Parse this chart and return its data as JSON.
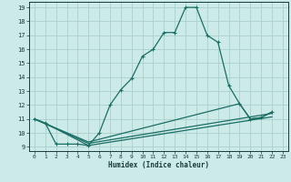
{
  "xlabel": "Humidex (Indice chaleur)",
  "bg_color": "#cceae8",
  "grid_color": "#aacfcd",
  "line_color": "#1a6e64",
  "xlim": [
    -0.5,
    23.5
  ],
  "ylim": [
    8.7,
    19.4
  ],
  "xticks": [
    0,
    1,
    2,
    3,
    4,
    5,
    6,
    7,
    8,
    9,
    10,
    11,
    12,
    13,
    14,
    15,
    16,
    17,
    18,
    19,
    20,
    21,
    22,
    23
  ],
  "yticks": [
    9,
    10,
    11,
    12,
    13,
    14,
    15,
    16,
    17,
    18,
    19
  ],
  "series1": [
    [
      0,
      11.0
    ],
    [
      1,
      10.7
    ],
    [
      2,
      9.2
    ],
    [
      3,
      9.2
    ],
    [
      4,
      9.2
    ],
    [
      5,
      9.1
    ],
    [
      6,
      10.0
    ],
    [
      7,
      12.0
    ],
    [
      8,
      13.1
    ],
    [
      9,
      13.9
    ],
    [
      10,
      15.5
    ],
    [
      11,
      16.0
    ],
    [
      12,
      17.2
    ],
    [
      13,
      17.2
    ],
    [
      14,
      19.0
    ],
    [
      15,
      19.0
    ],
    [
      16,
      17.0
    ],
    [
      17,
      16.5
    ],
    [
      18,
      13.4
    ],
    [
      19,
      12.1
    ],
    [
      20,
      11.0
    ],
    [
      21,
      11.1
    ],
    [
      22,
      11.5
    ]
  ],
  "series2": [
    [
      0,
      11.0
    ],
    [
      1,
      10.7
    ],
    [
      5,
      9.1
    ],
    [
      22,
      11.15
    ]
  ],
  "series3": [
    [
      0,
      11.0
    ],
    [
      5,
      9.25
    ],
    [
      22,
      11.4
    ]
  ],
  "series4": [
    [
      0,
      11.0
    ],
    [
      5,
      9.35
    ],
    [
      19,
      12.1
    ],
    [
      20,
      11.0
    ],
    [
      21,
      11.1
    ],
    [
      22,
      11.5
    ]
  ]
}
